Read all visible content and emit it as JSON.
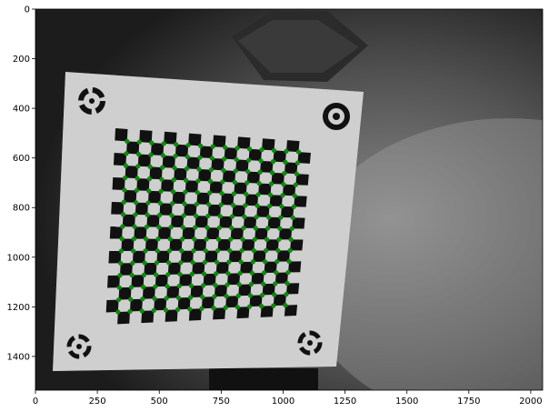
{
  "figure": {
    "kind": "image-with-axes",
    "image_description_icon": "calibration-board-photo",
    "x_ticks": [
      "0",
      "250",
      "500",
      "750",
      "1000",
      "1250",
      "1500",
      "1750",
      "2000"
    ],
    "y_ticks": [
      "0",
      "200",
      "400",
      "600",
      "800",
      "1000",
      "1200",
      "1400"
    ],
    "x_range": [
      0,
      2048
    ],
    "y_range": [
      1536,
      0
    ],
    "colors": {
      "axes_frame": "#000000",
      "background": "#1a1a1a",
      "board": "#d8d8d8",
      "checker_dark": "#111111",
      "detected_corner": "#0a8a0a"
    }
  }
}
